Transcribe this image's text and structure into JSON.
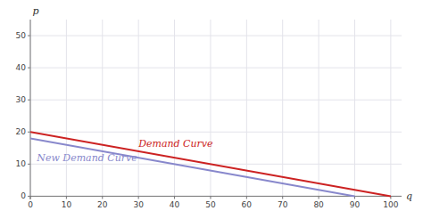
{
  "chart_data": {
    "type": "line",
    "title": "",
    "xlabel": "q",
    "ylabel": "p",
    "series": [
      {
        "name": "Demand Curve",
        "color": "#cc2222",
        "x": [
          0,
          100
        ],
        "values": [
          20,
          0
        ]
      },
      {
        "name": "New Demand Curve",
        "color": "#8888cc",
        "x": [
          0,
          90
        ],
        "values": [
          18,
          0
        ]
      }
    ],
    "xlim": [
      0,
      103
    ],
    "ylim": [
      -1,
      55
    ],
    "xticks": [
      0,
      10,
      20,
      30,
      40,
      50,
      60,
      70,
      80,
      90,
      100
    ],
    "yticks": [
      0,
      10,
      20,
      30,
      40,
      50
    ],
    "grid": true
  }
}
